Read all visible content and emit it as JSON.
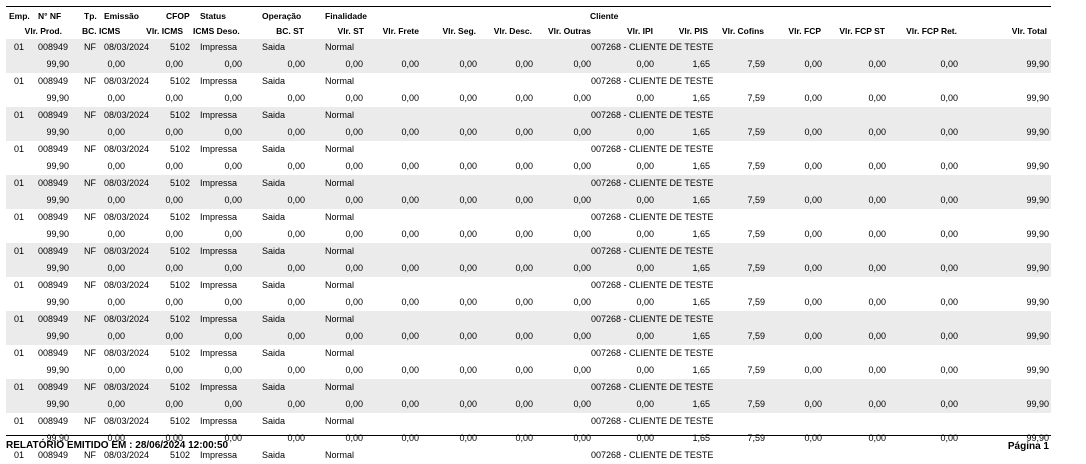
{
  "header": {
    "row1": {
      "emp": "Emp.",
      "nf": "N° NF",
      "tp": "Tp.",
      "emissao": "Emissão",
      "cfop": "CFOP",
      "status": "Status",
      "operacao": "Operação",
      "finalidade": "Finalidade",
      "cliente": "Cliente"
    },
    "row2": {
      "vlr_prod": "Vlr. Prod.",
      "bc_icms": "BC. ICMS",
      "vlr_icms": "Vlr. ICMS",
      "icms_deso": "ICMS Deso.",
      "bc_st": "BC. ST",
      "vlr_st": "Vlr. ST",
      "vlr_frete": "Vlr. Frete",
      "vlr_seg": "Vlr. Seg.",
      "vlr_desc": "Vlr. Desc.",
      "vlr_outras": "Vlr. Outras",
      "vlr_ipi": "Vlr. IPI",
      "vlr_pis": "Vlr. PIS",
      "vlr_cofins": "Vlr. Cofins",
      "vlr_fcp": "Vlr. FCP",
      "vlr_fcp_st": "Vlr. FCP ST",
      "vlr_fcp_ret": "Vlr. FCP Ret.",
      "vlr_total": "Vlr. Total"
    }
  },
  "records": [
    {
      "emp": "01",
      "nf": "008949",
      "tp": "NF",
      "emissao": "08/03/2024",
      "cfop": "5102",
      "status": "Impressa",
      "operacao": "Saida",
      "finalidade": "Normal",
      "cliente": "007268 - CLIENTE DE TESTE",
      "vlr_prod": "99,90",
      "bc_icms": "0,00",
      "vlr_icms": "0,00",
      "icms_deso": "0,00",
      "bc_st": "0,00",
      "vlr_st": "0,00",
      "vlr_frete": "0,00",
      "vlr_seg": "0,00",
      "vlr_desc": "0,00",
      "vlr_outras": "0,00",
      "vlr_ipi": "0,00",
      "vlr_pis": "1,65",
      "vlr_cofins": "7,59",
      "vlr_fcp": "0,00",
      "vlr_fcp_st": "0,00",
      "vlr_fcp_ret": "0,00",
      "vlr_total": "99,90"
    },
    {
      "emp": "01",
      "nf": "008949",
      "tp": "NF",
      "emissao": "08/03/2024",
      "cfop": "5102",
      "status": "Impressa",
      "operacao": "Saida",
      "finalidade": "Normal",
      "cliente": "007268 - CLIENTE DE TESTE",
      "vlr_prod": "99,90",
      "bc_icms": "0,00",
      "vlr_icms": "0,00",
      "icms_deso": "0,00",
      "bc_st": "0,00",
      "vlr_st": "0,00",
      "vlr_frete": "0,00",
      "vlr_seg": "0,00",
      "vlr_desc": "0,00",
      "vlr_outras": "0,00",
      "vlr_ipi": "0,00",
      "vlr_pis": "1,65",
      "vlr_cofins": "7,59",
      "vlr_fcp": "0,00",
      "vlr_fcp_st": "0,00",
      "vlr_fcp_ret": "0,00",
      "vlr_total": "99,90"
    },
    {
      "emp": "01",
      "nf": "008949",
      "tp": "NF",
      "emissao": "08/03/2024",
      "cfop": "5102",
      "status": "Impressa",
      "operacao": "Saida",
      "finalidade": "Normal",
      "cliente": "007268 - CLIENTE DE TESTE",
      "vlr_prod": "99,90",
      "bc_icms": "0,00",
      "vlr_icms": "0,00",
      "icms_deso": "0,00",
      "bc_st": "0,00",
      "vlr_st": "0,00",
      "vlr_frete": "0,00",
      "vlr_seg": "0,00",
      "vlr_desc": "0,00",
      "vlr_outras": "0,00",
      "vlr_ipi": "0,00",
      "vlr_pis": "1,65",
      "vlr_cofins": "7,59",
      "vlr_fcp": "0,00",
      "vlr_fcp_st": "0,00",
      "vlr_fcp_ret": "0,00",
      "vlr_total": "99,90"
    },
    {
      "emp": "01",
      "nf": "008949",
      "tp": "NF",
      "emissao": "08/03/2024",
      "cfop": "5102",
      "status": "Impressa",
      "operacao": "Saida",
      "finalidade": "Normal",
      "cliente": "007268 - CLIENTE DE TESTE",
      "vlr_prod": "99,90",
      "bc_icms": "0,00",
      "vlr_icms": "0,00",
      "icms_deso": "0,00",
      "bc_st": "0,00",
      "vlr_st": "0,00",
      "vlr_frete": "0,00",
      "vlr_seg": "0,00",
      "vlr_desc": "0,00",
      "vlr_outras": "0,00",
      "vlr_ipi": "0,00",
      "vlr_pis": "1,65",
      "vlr_cofins": "7,59",
      "vlr_fcp": "0,00",
      "vlr_fcp_st": "0,00",
      "vlr_fcp_ret": "0,00",
      "vlr_total": "99,90"
    },
    {
      "emp": "01",
      "nf": "008949",
      "tp": "NF",
      "emissao": "08/03/2024",
      "cfop": "5102",
      "status": "Impressa",
      "operacao": "Saida",
      "finalidade": "Normal",
      "cliente": "007268 - CLIENTE DE TESTE",
      "vlr_prod": "99,90",
      "bc_icms": "0,00",
      "vlr_icms": "0,00",
      "icms_deso": "0,00",
      "bc_st": "0,00",
      "vlr_st": "0,00",
      "vlr_frete": "0,00",
      "vlr_seg": "0,00",
      "vlr_desc": "0,00",
      "vlr_outras": "0,00",
      "vlr_ipi": "0,00",
      "vlr_pis": "1,65",
      "vlr_cofins": "7,59",
      "vlr_fcp": "0,00",
      "vlr_fcp_st": "0,00",
      "vlr_fcp_ret": "0,00",
      "vlr_total": "99,90"
    },
    {
      "emp": "01",
      "nf": "008949",
      "tp": "NF",
      "emissao": "08/03/2024",
      "cfop": "5102",
      "status": "Impressa",
      "operacao": "Saida",
      "finalidade": "Normal",
      "cliente": "007268 - CLIENTE DE TESTE",
      "vlr_prod": "99,90",
      "bc_icms": "0,00",
      "vlr_icms": "0,00",
      "icms_deso": "0,00",
      "bc_st": "0,00",
      "vlr_st": "0,00",
      "vlr_frete": "0,00",
      "vlr_seg": "0,00",
      "vlr_desc": "0,00",
      "vlr_outras": "0,00",
      "vlr_ipi": "0,00",
      "vlr_pis": "1,65",
      "vlr_cofins": "7,59",
      "vlr_fcp": "0,00",
      "vlr_fcp_st": "0,00",
      "vlr_fcp_ret": "0,00",
      "vlr_total": "99,90"
    },
    {
      "emp": "01",
      "nf": "008949",
      "tp": "NF",
      "emissao": "08/03/2024",
      "cfop": "5102",
      "status": "Impressa",
      "operacao": "Saida",
      "finalidade": "Normal",
      "cliente": "007268 - CLIENTE DE TESTE",
      "vlr_prod": "99,90",
      "bc_icms": "0,00",
      "vlr_icms": "0,00",
      "icms_deso": "0,00",
      "bc_st": "0,00",
      "vlr_st": "0,00",
      "vlr_frete": "0,00",
      "vlr_seg": "0,00",
      "vlr_desc": "0,00",
      "vlr_outras": "0,00",
      "vlr_ipi": "0,00",
      "vlr_pis": "1,65",
      "vlr_cofins": "7,59",
      "vlr_fcp": "0,00",
      "vlr_fcp_st": "0,00",
      "vlr_fcp_ret": "0,00",
      "vlr_total": "99,90"
    },
    {
      "emp": "01",
      "nf": "008949",
      "tp": "NF",
      "emissao": "08/03/2024",
      "cfop": "5102",
      "status": "Impressa",
      "operacao": "Saida",
      "finalidade": "Normal",
      "cliente": "007268 - CLIENTE DE TESTE",
      "vlr_prod": "99,90",
      "bc_icms": "0,00",
      "vlr_icms": "0,00",
      "icms_deso": "0,00",
      "bc_st": "0,00",
      "vlr_st": "0,00",
      "vlr_frete": "0,00",
      "vlr_seg": "0,00",
      "vlr_desc": "0,00",
      "vlr_outras": "0,00",
      "vlr_ipi": "0,00",
      "vlr_pis": "1,65",
      "vlr_cofins": "7,59",
      "vlr_fcp": "0,00",
      "vlr_fcp_st": "0,00",
      "vlr_fcp_ret": "0,00",
      "vlr_total": "99,90"
    },
    {
      "emp": "01",
      "nf": "008949",
      "tp": "NF",
      "emissao": "08/03/2024",
      "cfop": "5102",
      "status": "Impressa",
      "operacao": "Saida",
      "finalidade": "Normal",
      "cliente": "007268 - CLIENTE DE TESTE",
      "vlr_prod": "99,90",
      "bc_icms": "0,00",
      "vlr_icms": "0,00",
      "icms_deso": "0,00",
      "bc_st": "0,00",
      "vlr_st": "0,00",
      "vlr_frete": "0,00",
      "vlr_seg": "0,00",
      "vlr_desc": "0,00",
      "vlr_outras": "0,00",
      "vlr_ipi": "0,00",
      "vlr_pis": "1,65",
      "vlr_cofins": "7,59",
      "vlr_fcp": "0,00",
      "vlr_fcp_st": "0,00",
      "vlr_fcp_ret": "0,00",
      "vlr_total": "99,90"
    },
    {
      "emp": "01",
      "nf": "008949",
      "tp": "NF",
      "emissao": "08/03/2024",
      "cfop": "5102",
      "status": "Impressa",
      "operacao": "Saida",
      "finalidade": "Normal",
      "cliente": "007268 - CLIENTE DE TESTE",
      "vlr_prod": "99,90",
      "bc_icms": "0,00",
      "vlr_icms": "0,00",
      "icms_deso": "0,00",
      "bc_st": "0,00",
      "vlr_st": "0,00",
      "vlr_frete": "0,00",
      "vlr_seg": "0,00",
      "vlr_desc": "0,00",
      "vlr_outras": "0,00",
      "vlr_ipi": "0,00",
      "vlr_pis": "1,65",
      "vlr_cofins": "7,59",
      "vlr_fcp": "0,00",
      "vlr_fcp_st": "0,00",
      "vlr_fcp_ret": "0,00",
      "vlr_total": "99,90"
    },
    {
      "emp": "01",
      "nf": "008949",
      "tp": "NF",
      "emissao": "08/03/2024",
      "cfop": "5102",
      "status": "Impressa",
      "operacao": "Saida",
      "finalidade": "Normal",
      "cliente": "007268 - CLIENTE DE TESTE",
      "vlr_prod": "99,90",
      "bc_icms": "0,00",
      "vlr_icms": "0,00",
      "icms_deso": "0,00",
      "bc_st": "0,00",
      "vlr_st": "0,00",
      "vlr_frete": "0,00",
      "vlr_seg": "0,00",
      "vlr_desc": "0,00",
      "vlr_outras": "0,00",
      "vlr_ipi": "0,00",
      "vlr_pis": "1,65",
      "vlr_cofins": "7,59",
      "vlr_fcp": "0,00",
      "vlr_fcp_st": "0,00",
      "vlr_fcp_ret": "0,00",
      "vlr_total": "99,90"
    },
    {
      "emp": "01",
      "nf": "008949",
      "tp": "NF",
      "emissao": "08/03/2024",
      "cfop": "5102",
      "status": "Impressa",
      "operacao": "Saida",
      "finalidade": "Normal",
      "cliente": "007268 - CLIENTE DE TESTE",
      "vlr_prod": "99,90",
      "bc_icms": "0,00",
      "vlr_icms": "0,00",
      "icms_deso": "0,00",
      "bc_st": "0,00",
      "vlr_st": "0,00",
      "vlr_frete": "0,00",
      "vlr_seg": "0,00",
      "vlr_desc": "0,00",
      "vlr_outras": "0,00",
      "vlr_ipi": "0,00",
      "vlr_pis": "1,65",
      "vlr_cofins": "7,59",
      "vlr_fcp": "0,00",
      "vlr_fcp_st": "0,00",
      "vlr_fcp_ret": "0,00",
      "vlr_total": "99,90"
    }
  ],
  "partial_record": {
    "emp": "01",
    "nf": "008949",
    "tp": "NF",
    "emissao": "08/03/2024",
    "cfop": "5102",
    "status": "Impressa",
    "operacao": "Saida",
    "finalidade": "Normal",
    "cliente": "007268 - CLIENTE DE TESTE"
  },
  "footer": {
    "emitted": "RELATÓRIO EMITIDO EM : 28/06/2024 12:00:50",
    "page": "Página 1"
  }
}
